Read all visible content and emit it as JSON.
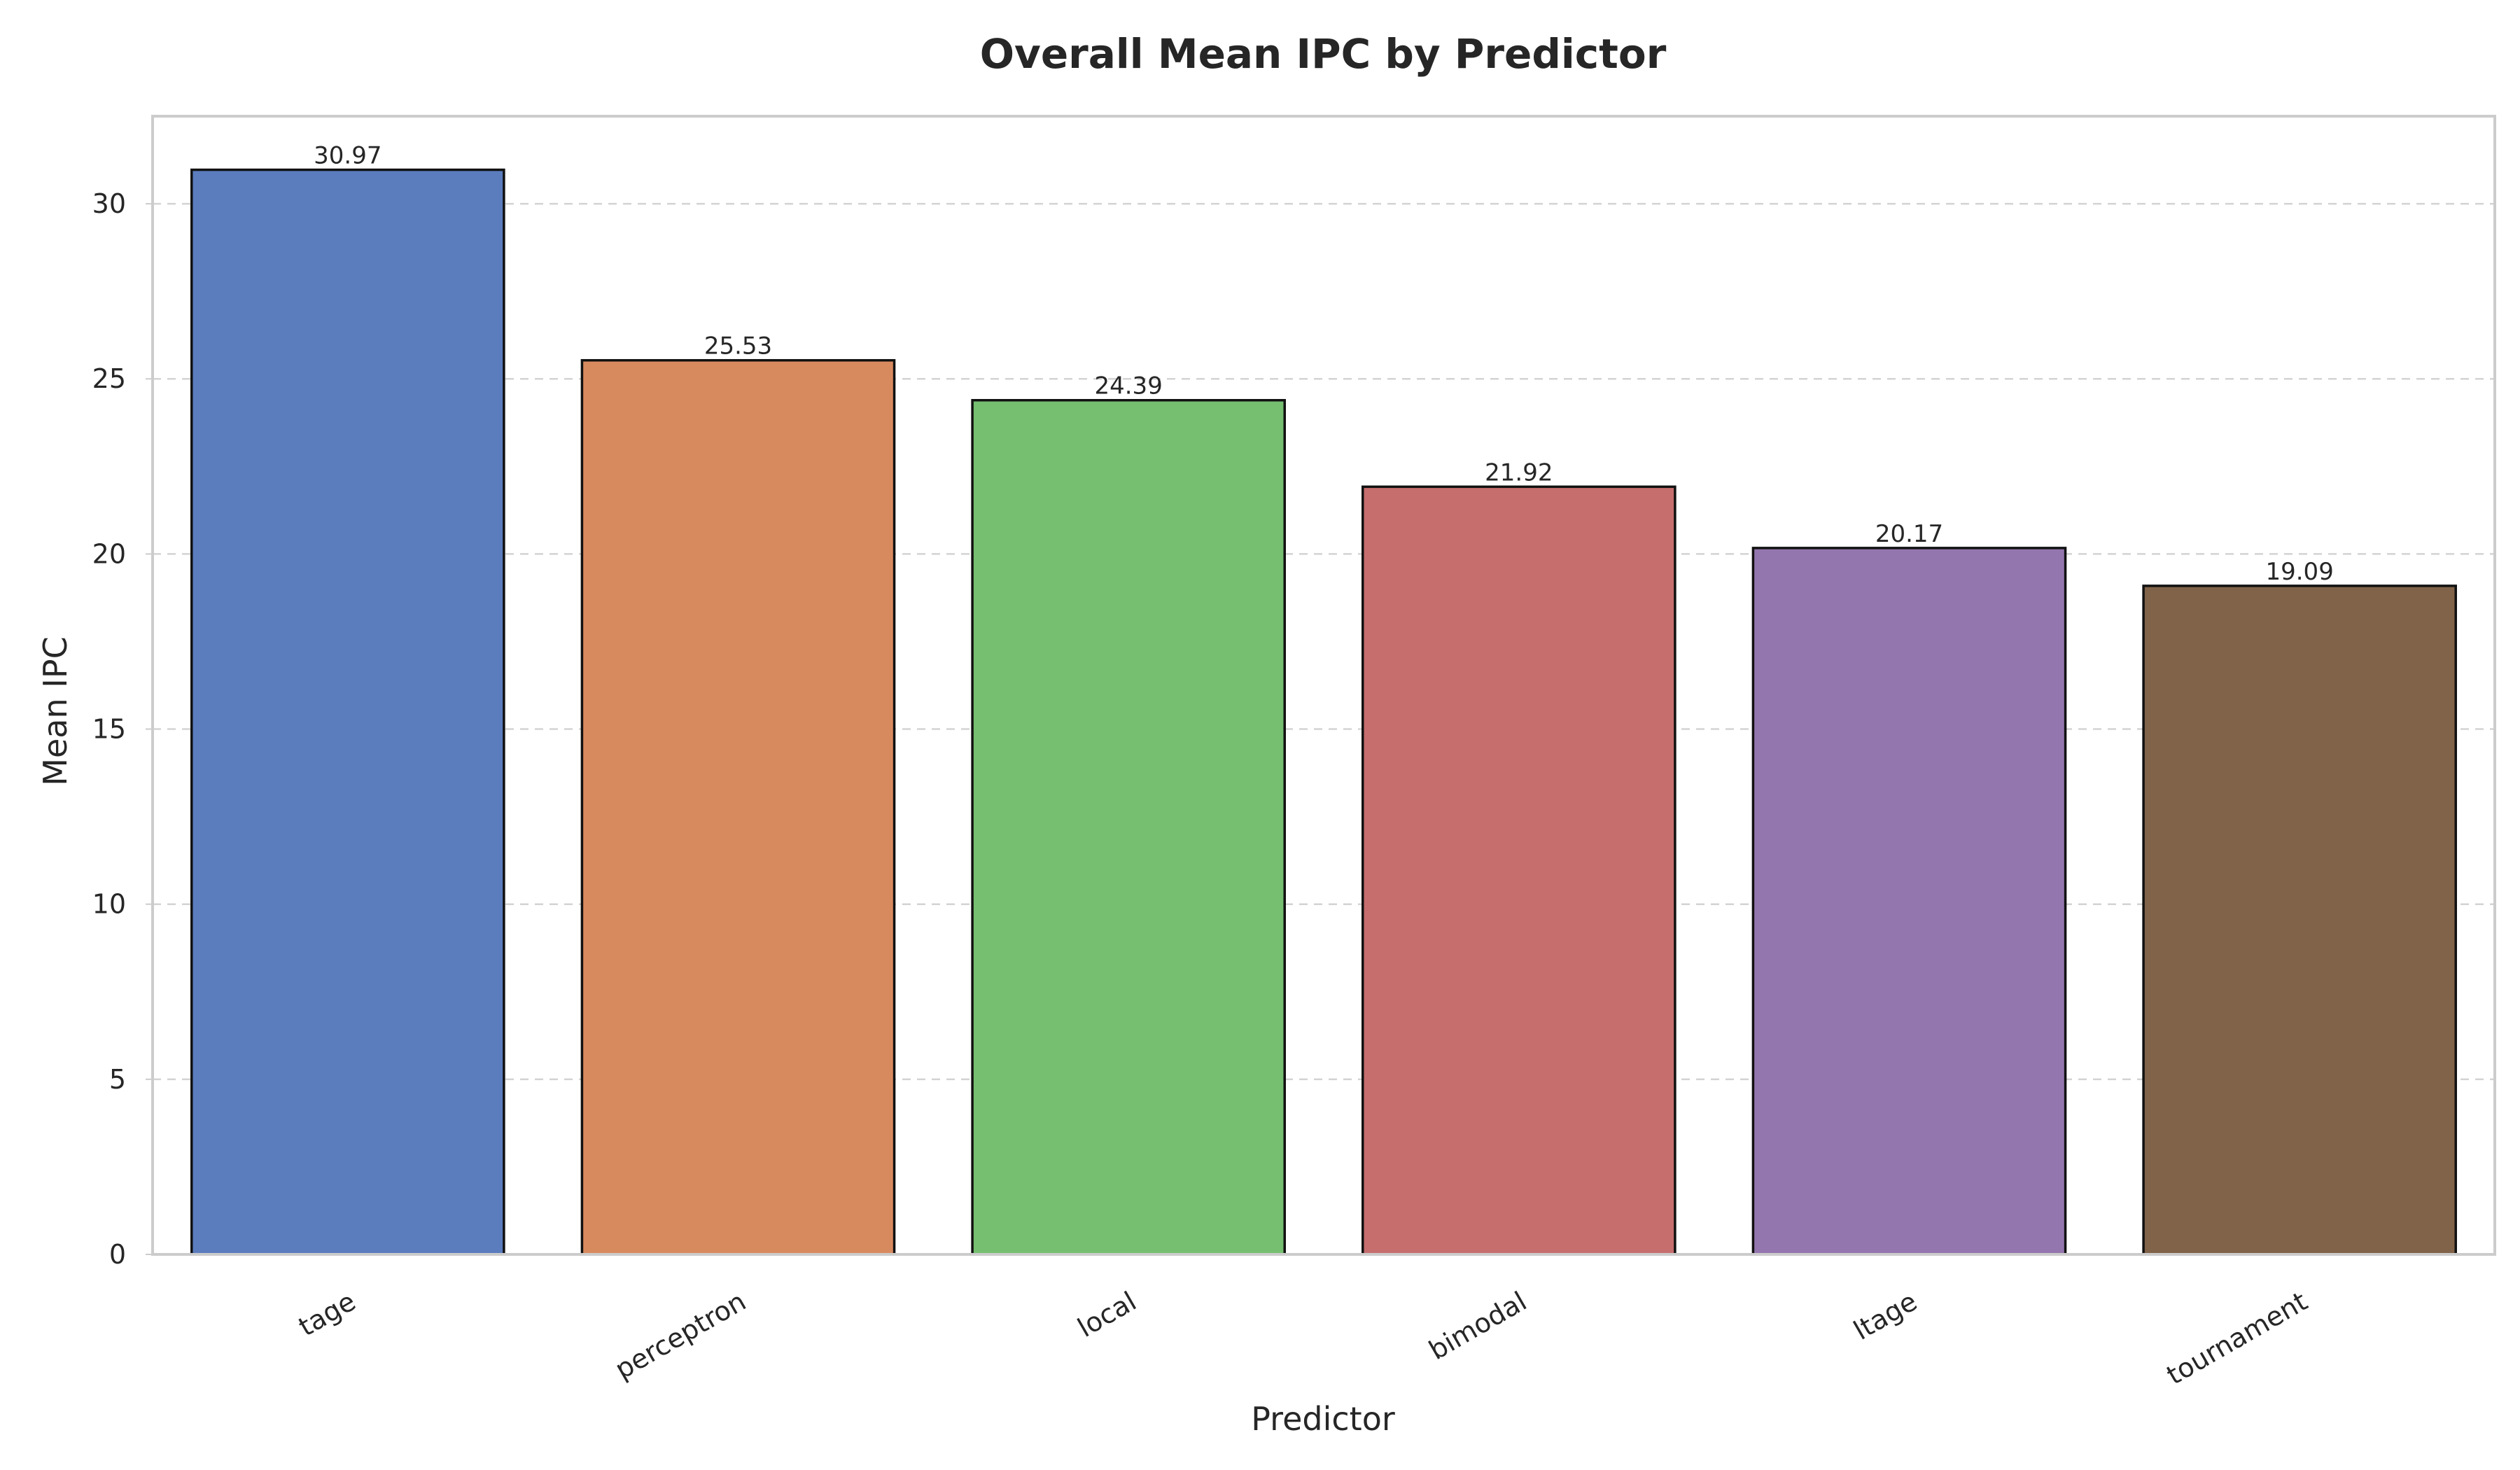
{
  "chart_data": {
    "type": "bar",
    "title": "Overall Mean IPC by Predictor",
    "xlabel": "Predictor",
    "ylabel": "Mean IPC",
    "categories": [
      "tage",
      "perceptron",
      "local",
      "bimodal",
      "ltage",
      "tournament"
    ],
    "values": [
      30.97,
      25.53,
      24.39,
      21.92,
      20.17,
      19.09
    ],
    "value_labels": [
      "30.97",
      "25.53",
      "24.39",
      "21.92",
      "20.17",
      "19.09"
    ],
    "colors": [
      "#5b7dbe",
      "#d88a5f",
      "#76bf71",
      "#c66e6e",
      "#9476ae",
      "#806349"
    ],
    "ylim": [
      0,
      32.5
    ],
    "yticks": [
      0,
      5,
      10,
      15,
      20,
      25,
      30
    ],
    "grid": true,
    "grid_axis": "y",
    "grid_style": "dashed",
    "xtick_rotation": "30-degrees",
    "legend": "none"
  }
}
